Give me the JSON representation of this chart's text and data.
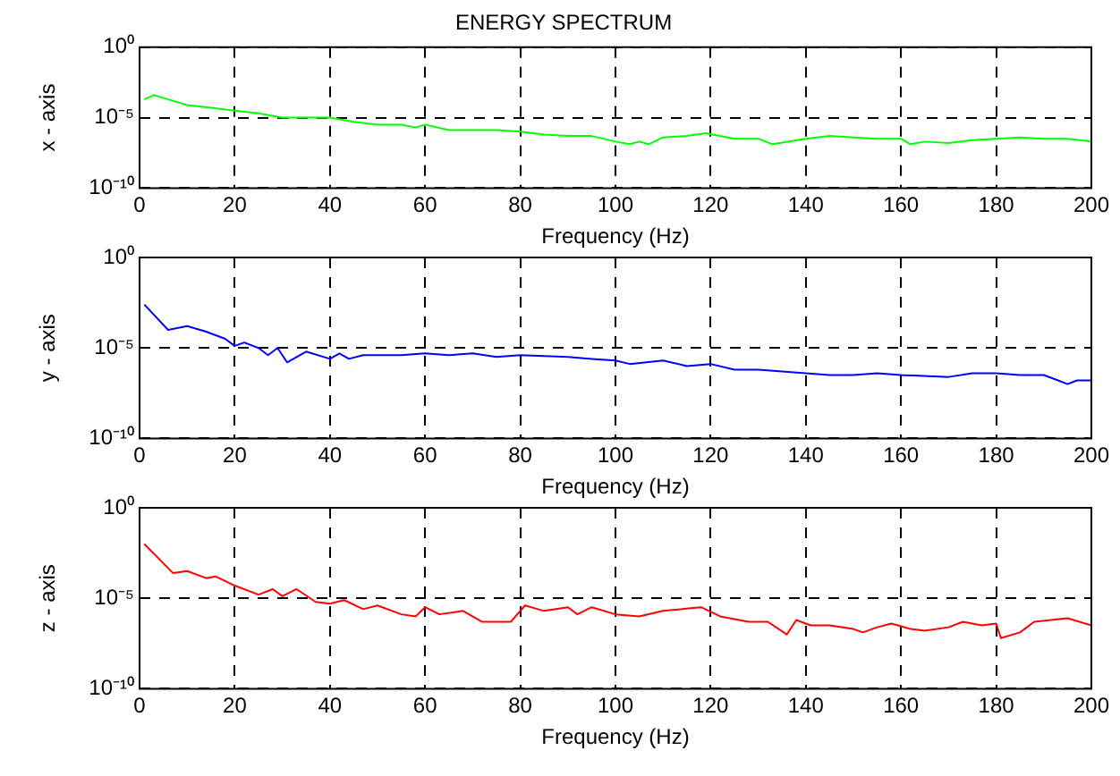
{
  "chart_data": [
    {
      "type": "line",
      "title": "ENERGY SPECTRUM",
      "xlabel": "Frequency (Hz)",
      "ylabel": "x - axis",
      "log": true,
      "grid": true,
      "marker": "none",
      "xlim": [
        0,
        200
      ],
      "xticks": [
        0,
        20,
        40,
        60,
        80,
        100,
        120,
        140,
        160,
        180,
        200
      ],
      "ylim": [
        1e-10,
        1
      ],
      "yticks": [
        {
          "value": 1,
          "label": "10⁰"
        },
        {
          "value": 1e-05,
          "label": "10⁻⁵"
        },
        {
          "value": 1e-10,
          "label": "10⁻¹⁰"
        }
      ],
      "x": [
        1,
        3,
        6,
        10,
        15,
        20,
        25,
        30,
        35,
        40,
        45,
        50,
        55,
        58,
        60,
        65,
        70,
        75,
        80,
        85,
        90,
        95,
        100,
        103,
        105,
        107,
        110,
        115,
        119,
        125,
        130,
        133,
        140,
        145,
        150,
        155,
        160,
        162,
        165,
        170,
        175,
        180,
        185,
        190,
        195,
        200
      ],
      "series": [
        {
          "color": "#00ff00",
          "values": [
            0.0002,
            0.0004,
            0.0002,
            7.9e-05,
            5e-05,
            3.2e-05,
            2e-05,
            1e-05,
            1e-05,
            1e-05,
            5e-06,
            3.2e-06,
            3.2e-06,
            2e-06,
            3.2e-06,
            1.3e-06,
            1.3e-06,
            1.3e-06,
            1e-06,
            6.3e-07,
            5e-07,
            5e-07,
            2e-07,
            1.3e-07,
            2e-07,
            1.3e-07,
            4e-07,
            5e-07,
            7.9e-07,
            3.2e-07,
            3.2e-07,
            1.3e-07,
            3.2e-07,
            5e-07,
            4e-07,
            3.2e-07,
            3.2e-07,
            1.3e-07,
            2e-07,
            1.6e-07,
            2.5e-07,
            3.2e-07,
            4e-07,
            3.2e-07,
            3.2e-07,
            2e-07
          ]
        }
      ]
    },
    {
      "type": "line",
      "xlabel": "Frequency (Hz)",
      "ylabel": "y - axis",
      "log": true,
      "grid": true,
      "marker": "none",
      "xlim": [
        0,
        200
      ],
      "xticks": [
        0,
        20,
        40,
        60,
        80,
        100,
        120,
        140,
        160,
        180,
        200
      ],
      "ylim": [
        1e-10,
        1
      ],
      "yticks": [
        {
          "value": 1,
          "label": "10⁰"
        },
        {
          "value": 1e-05,
          "label": "10⁻⁵"
        },
        {
          "value": 1e-10,
          "label": "10⁻¹⁰"
        }
      ],
      "x": [
        1,
        6,
        10,
        14,
        18,
        20,
        22,
        25,
        27,
        29,
        31,
        35,
        40,
        42,
        44,
        47,
        55,
        60,
        65,
        70,
        75,
        80,
        90,
        95,
        100,
        103,
        110,
        115,
        120,
        125,
        130,
        135,
        140,
        145,
        150,
        155,
        160,
        170,
        175,
        180,
        185,
        190,
        193,
        195,
        197,
        200
      ],
      "series": [
        {
          "color": "#0000ff",
          "values": [
            0.0025,
            0.0001,
            0.00016,
            7.9e-05,
            3.2e-05,
            1.3e-05,
            2e-05,
            1e-05,
            4e-06,
            1e-05,
            1.6e-06,
            6.3e-06,
            2.5e-06,
            5e-06,
            2.5e-06,
            4e-06,
            4e-06,
            5e-06,
            4e-06,
            5e-06,
            3.2e-06,
            4e-06,
            3.2e-06,
            2.5e-06,
            2e-06,
            1.3e-06,
            2e-06,
            1e-06,
            1.3e-06,
            6.3e-07,
            6.3e-07,
            5e-07,
            4e-07,
            3.2e-07,
            3.2e-07,
            4e-07,
            3.2e-07,
            2.5e-07,
            4e-07,
            4e-07,
            3.2e-07,
            3.2e-07,
            1.6e-07,
            1e-07,
            1.6e-07,
            1.6e-07
          ]
        }
      ]
    },
    {
      "type": "line",
      "xlabel": "Frequency (Hz)",
      "ylabel": "z - axis",
      "log": true,
      "grid": true,
      "marker": "none",
      "xlim": [
        0,
        200
      ],
      "xticks": [
        0,
        20,
        40,
        60,
        80,
        100,
        120,
        140,
        160,
        180,
        200
      ],
      "ylim": [
        1e-10,
        1
      ],
      "yticks": [
        {
          "value": 1,
          "label": "10⁰"
        },
        {
          "value": 1e-05,
          "label": "10⁻⁵"
        },
        {
          "value": 1e-10,
          "label": "10⁻¹⁰"
        }
      ],
      "x": [
        1,
        4,
        7,
        10,
        14,
        16,
        20,
        25,
        28,
        30,
        33,
        37,
        40,
        43,
        47,
        50,
        55,
        58,
        60,
        63,
        68,
        72,
        78,
        81,
        85,
        90,
        92,
        95,
        100,
        105,
        110,
        118,
        122,
        128,
        132,
        136,
        138,
        141,
        145,
        150,
        152,
        155,
        158,
        162,
        165,
        170,
        173,
        177,
        180,
        181,
        185,
        188,
        195,
        200
      ],
      "series": [
        {
          "color": "#ff0000",
          "values": [
            0.01,
            0.0016,
            0.00025,
            0.00032,
            0.00013,
            0.00016,
            5e-05,
            1.6e-05,
            3.2e-05,
            1.3e-05,
            3.2e-05,
            6.3e-06,
            5e-06,
            7.9e-06,
            2.5e-06,
            4e-06,
            1.3e-06,
            1e-06,
            3.2e-06,
            1.3e-06,
            2e-06,
            5e-07,
            5e-07,
            4e-06,
            2e-06,
            3.2e-06,
            1.3e-06,
            3.2e-06,
            1.3e-06,
            1e-06,
            2e-06,
            3.2e-06,
            1e-06,
            5e-07,
            5e-07,
            1e-07,
            6.3e-07,
            3.2e-07,
            3.2e-07,
            2e-07,
            1.3e-07,
            2.5e-07,
            4e-07,
            2e-07,
            1.6e-07,
            2.5e-07,
            5e-07,
            3.2e-07,
            4e-07,
            6.3e-08,
            1.3e-07,
            5e-07,
            7.9e-07,
            3.2e-07
          ]
        }
      ]
    }
  ]
}
